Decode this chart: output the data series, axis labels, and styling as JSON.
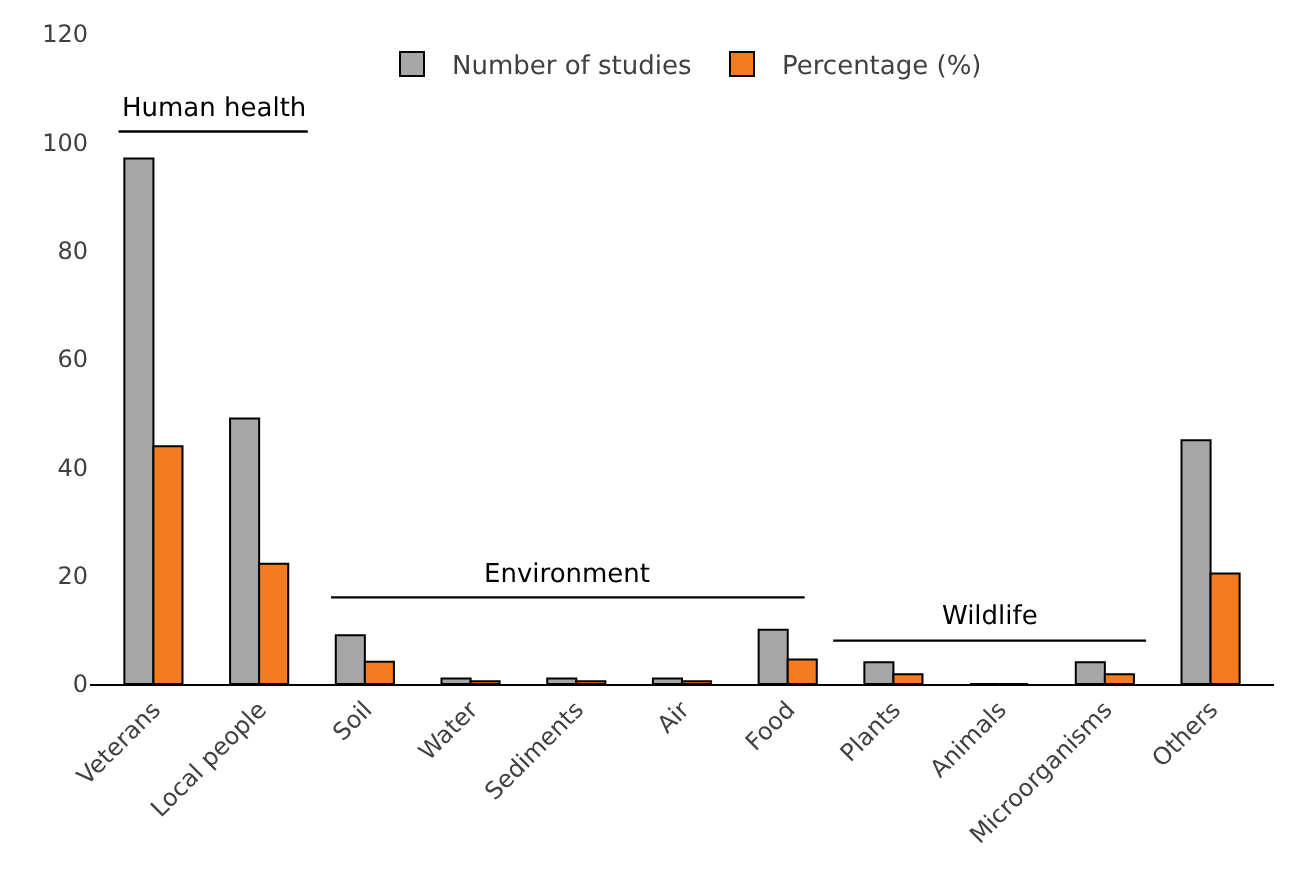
{
  "chart_data": {
    "type": "bar",
    "categories": [
      "Veterans",
      "Local people",
      "Soil",
      "Water",
      "Sediments",
      "Air",
      "Food",
      "Plants",
      "Animals",
      "Microorganisms",
      "Others"
    ],
    "series": [
      {
        "name": "Number of studies",
        "color": "#a6a6a6",
        "values": [
          97,
          49,
          9,
          1,
          1,
          1,
          10,
          4,
          0,
          4,
          45
        ]
      },
      {
        "name": "Percentage (%)",
        "color": "#f47b20",
        "values": [
          43.9,
          22.2,
          4.1,
          0.5,
          0.5,
          0.5,
          4.5,
          1.8,
          0,
          1.8,
          20.4
        ]
      }
    ],
    "ylim": [
      0,
      120
    ],
    "yticks": [
      0,
      20,
      40,
      60,
      80,
      100,
      120
    ],
    "grid": false,
    "legend": "top",
    "annotations": [
      "Human health",
      "Environment",
      "Wildlife"
    ]
  }
}
